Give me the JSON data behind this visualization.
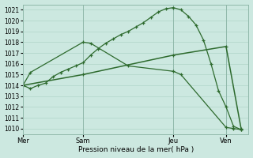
{
  "title": "Pression niveau de la mer( hPa )",
  "bg_color": "#cce8e0",
  "line_color": "#2d6a2d",
  "grid_color": "#b0d4c8",
  "ylim": [
    1009.5,
    1021.5
  ],
  "yticks": [
    1010,
    1011,
    1012,
    1013,
    1014,
    1015,
    1016,
    1017,
    1018,
    1019,
    1020,
    1021
  ],
  "day_labels": [
    "Mer",
    "Sam",
    "Jeu",
    "Ven"
  ],
  "day_positions": [
    0,
    8,
    20,
    27
  ],
  "xlim": [
    0,
    30
  ],
  "line1_x": [
    0,
    1,
    2,
    3,
    4,
    5,
    6,
    7,
    8,
    9,
    10,
    11,
    12,
    13,
    14,
    15,
    16,
    17,
    18,
    19,
    20,
    21,
    22,
    23,
    24,
    25,
    26,
    27,
    28,
    29
  ],
  "line1_y": [
    1014.0,
    1013.7,
    1014.0,
    1014.2,
    1014.8,
    1015.2,
    1015.5,
    1015.8,
    1016.1,
    1016.8,
    1017.4,
    1017.9,
    1018.3,
    1018.7,
    1019.0,
    1019.4,
    1019.8,
    1020.3,
    1020.8,
    1021.1,
    1021.2,
    1021.0,
    1020.4,
    1019.6,
    1018.2,
    1016.0,
    1013.5,
    1012.0,
    1010.2,
    1009.9
  ],
  "line2_x": [
    0,
    8,
    20,
    27,
    29
  ],
  "line2_y": [
    1014.0,
    1015.0,
    1016.8,
    1017.6,
    1010.0
  ],
  "line3_x": [
    0,
    1,
    8,
    9,
    14,
    20,
    21,
    27,
    28,
    29
  ],
  "line3_y": [
    1014.0,
    1015.2,
    1018.0,
    1017.9,
    1015.8,
    1015.3,
    1015.0,
    1010.1,
    1010.0,
    1009.9
  ]
}
